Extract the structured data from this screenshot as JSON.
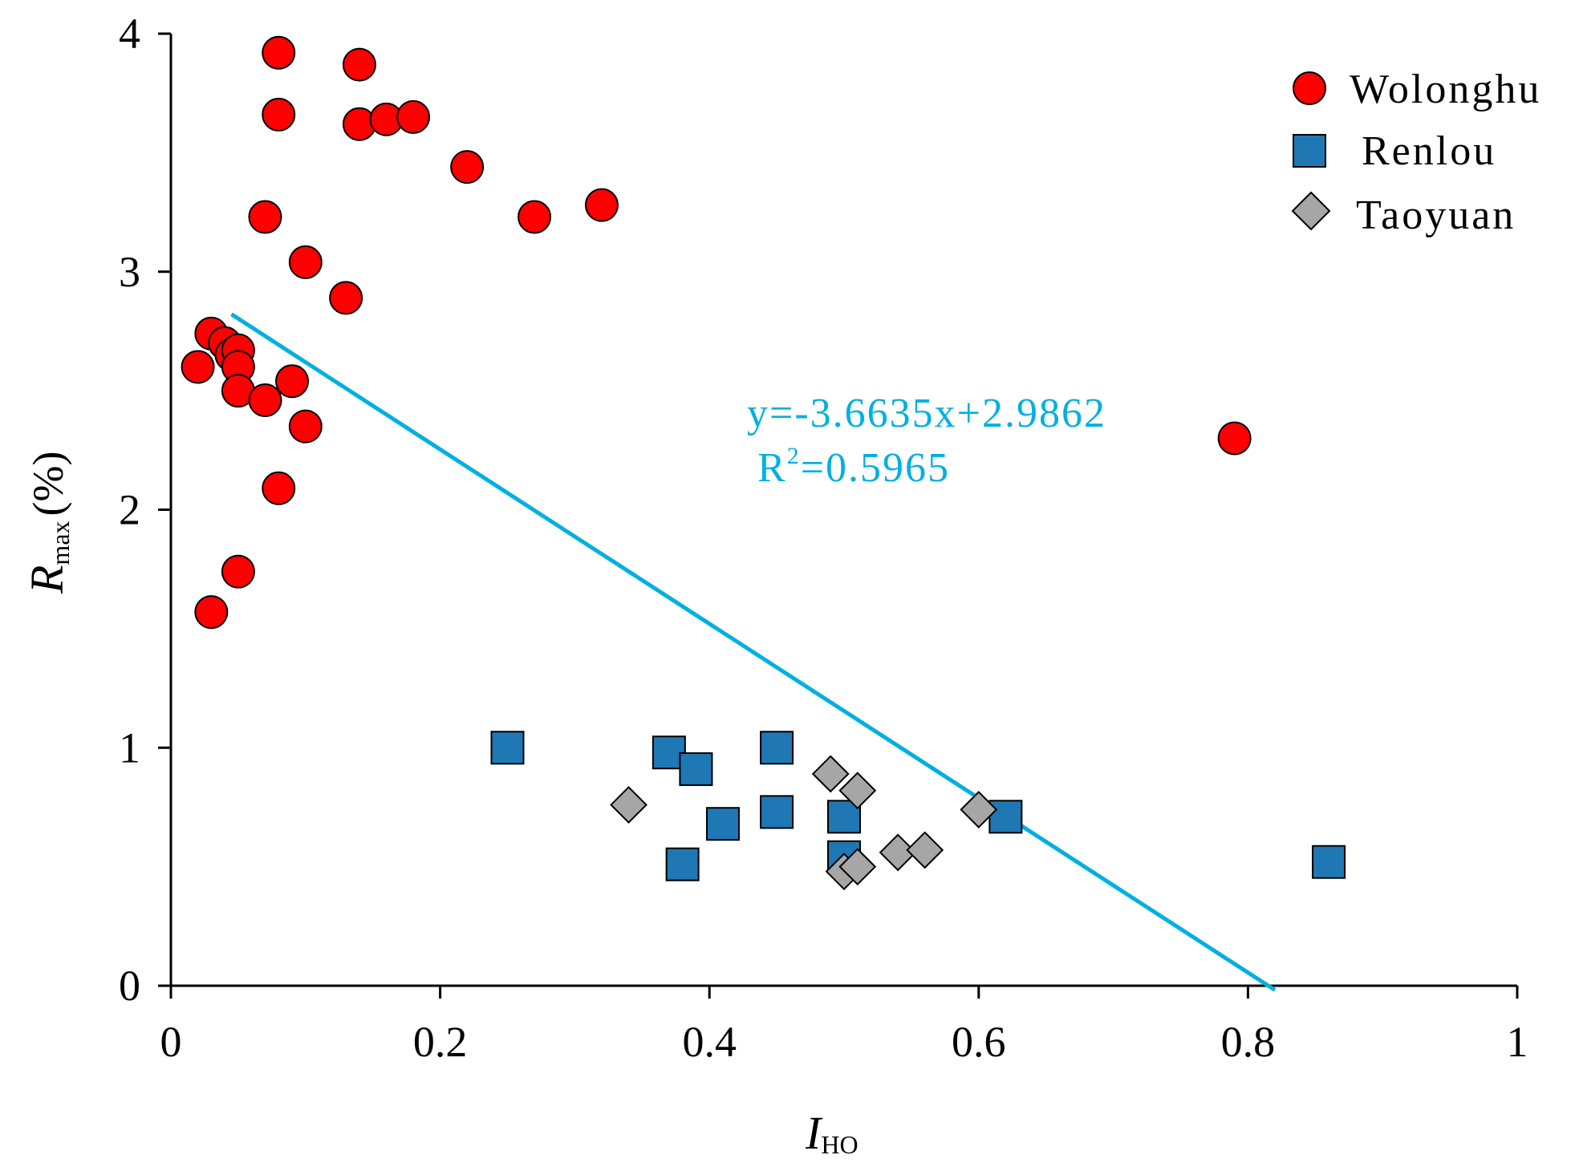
{
  "chart_data": {
    "type": "scatter",
    "title": "",
    "xlabel": {
      "main": "I",
      "sub": "HO"
    },
    "ylabel": {
      "main": "R",
      "sub": "max",
      "suffix": "(%)"
    },
    "xlim": [
      0,
      1
    ],
    "ylim": [
      0,
      4
    ],
    "x_ticks": [
      0,
      0.2,
      0.4,
      0.6,
      0.8,
      1
    ],
    "x_tick_labels": [
      "0",
      "0.2",
      "0.4",
      "0.6",
      "0.8",
      "1"
    ],
    "y_ticks": [
      0,
      1,
      2,
      3,
      4
    ],
    "y_tick_labels": [
      "0",
      "1",
      "2",
      "3",
      "4"
    ],
    "grid": false,
    "legend_position": "top-right",
    "series": [
      {
        "name": "Wolonghu",
        "marker": "circle",
        "color": "#ff0000",
        "points": [
          [
            0.08,
            3.92
          ],
          [
            0.14,
            3.87
          ],
          [
            0.08,
            3.66
          ],
          [
            0.14,
            3.62
          ],
          [
            0.16,
            3.64
          ],
          [
            0.18,
            3.65
          ],
          [
            0.22,
            3.44
          ],
          [
            0.07,
            3.23
          ],
          [
            0.27,
            3.23
          ],
          [
            0.32,
            3.28
          ],
          [
            0.1,
            3.04
          ],
          [
            0.13,
            2.89
          ],
          [
            0.03,
            2.74
          ],
          [
            0.04,
            2.7
          ],
          [
            0.045,
            2.65
          ],
          [
            0.05,
            2.67
          ],
          [
            0.05,
            2.6
          ],
          [
            0.02,
            2.6
          ],
          [
            0.05,
            2.5
          ],
          [
            0.07,
            2.46
          ],
          [
            0.09,
            2.54
          ],
          [
            0.1,
            2.35
          ],
          [
            0.08,
            2.09
          ],
          [
            0.05,
            1.74
          ],
          [
            0.03,
            1.57
          ],
          [
            0.79,
            2.3
          ]
        ]
      },
      {
        "name": "Renlou",
        "marker": "square",
        "color": "#1f77b4",
        "points": [
          [
            0.25,
            1.0
          ],
          [
            0.37,
            0.98
          ],
          [
            0.39,
            0.91
          ],
          [
            0.45,
            1.0
          ],
          [
            0.45,
            0.73
          ],
          [
            0.41,
            0.68
          ],
          [
            0.38,
            0.51
          ],
          [
            0.5,
            0.71
          ],
          [
            0.5,
            0.54
          ],
          [
            0.62,
            0.71
          ],
          [
            0.86,
            0.52
          ]
        ]
      },
      {
        "name": "Taoyuan",
        "marker": "diamond",
        "color": "#a6a6a6",
        "points": [
          [
            0.34,
            0.76
          ],
          [
            0.49,
            0.89
          ],
          [
            0.51,
            0.82
          ],
          [
            0.5,
            0.48
          ],
          [
            0.51,
            0.5
          ],
          [
            0.54,
            0.56
          ],
          [
            0.56,
            0.57
          ],
          [
            0.6,
            0.74
          ]
        ]
      }
    ],
    "trendline": {
      "slope": -3.6635,
      "intercept": 2.9862,
      "x_range": [
        0.045,
        0.82
      ],
      "color": "#00b0e0",
      "equation": "y=-3.6635x+2.9862",
      "r2_label": "R",
      "r2_sup": "2",
      "r2_value": "=0.5965"
    }
  }
}
